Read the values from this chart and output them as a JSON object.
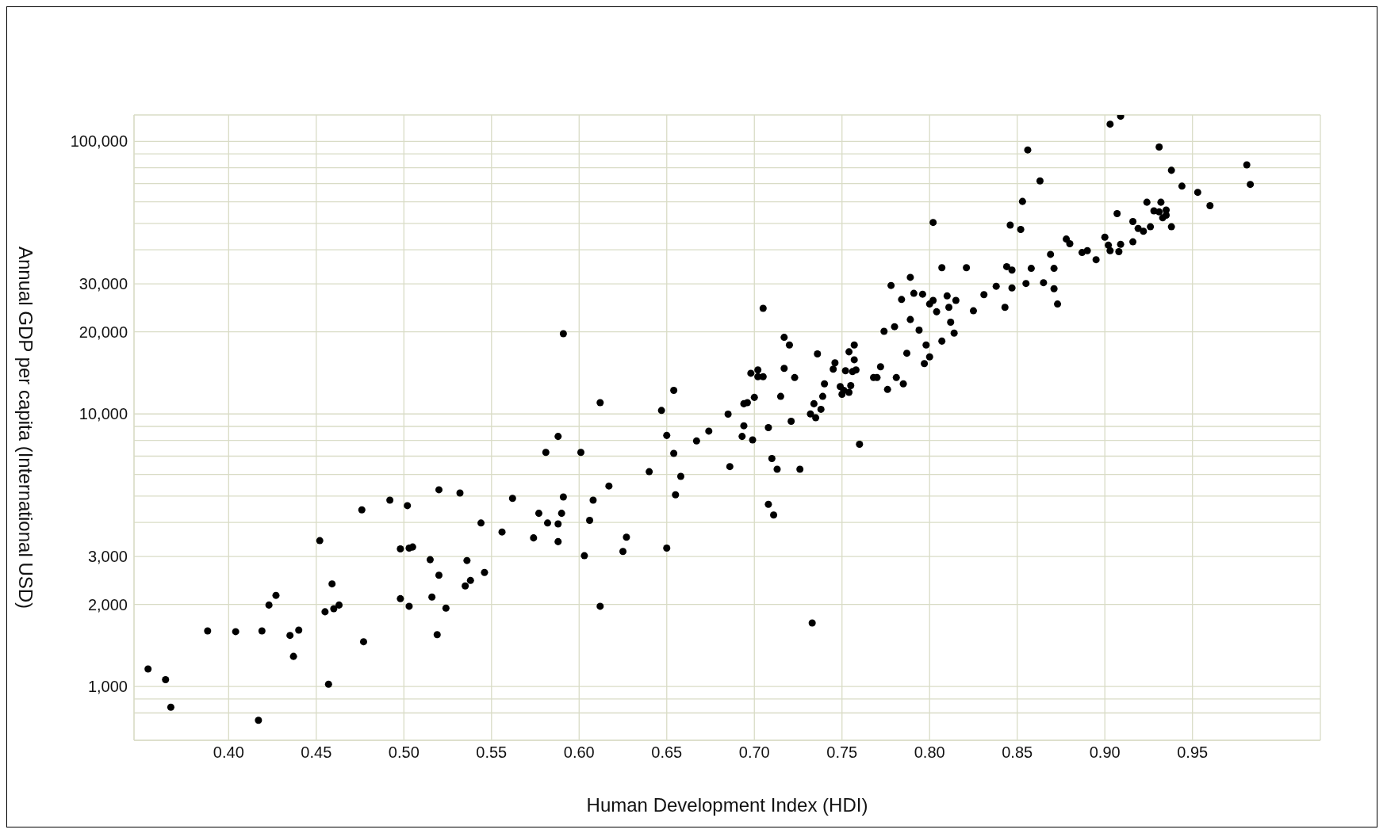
{
  "chart_data": {
    "type": "scatter",
    "xlabel": "Human Development Index (HDI)",
    "ylabel": "Annual GDP per capita (International USD)",
    "log": "y",
    "grid": true,
    "marker": "circle",
    "color": "#000000",
    "xlim": [
      0.346,
      1.023
    ],
    "ylim": [
      635,
      125000
    ],
    "xticks": [
      {
        "value": 0.4,
        "label": "0.40"
      },
      {
        "value": 0.45,
        "label": "0.45"
      },
      {
        "value": 0.5,
        "label": "0.50"
      },
      {
        "value": 0.55,
        "label": "0.55"
      },
      {
        "value": 0.6,
        "label": "0.60"
      },
      {
        "value": 0.65,
        "label": "0.65"
      },
      {
        "value": 0.7,
        "label": "0.70"
      },
      {
        "value": 0.75,
        "label": "0.75"
      },
      {
        "value": 0.8,
        "label": "0.80"
      },
      {
        "value": 0.85,
        "label": "0.85"
      },
      {
        "value": 0.9,
        "label": "0.90"
      },
      {
        "value": 0.95,
        "label": "0.95"
      }
    ],
    "yticks": [
      {
        "value": 800,
        "label": null
      },
      {
        "value": 900,
        "label": null
      },
      {
        "value": 1000,
        "label": "1,000"
      },
      {
        "value": 2000,
        "label": "2,000"
      },
      {
        "value": 3000,
        "label": "3,000"
      },
      {
        "value": 4000,
        "label": null
      },
      {
        "value": 5000,
        "label": null
      },
      {
        "value": 6000,
        "label": null
      },
      {
        "value": 7000,
        "label": null
      },
      {
        "value": 8000,
        "label": null
      },
      {
        "value": 9000,
        "label": null
      },
      {
        "value": 10000,
        "label": "10,000"
      },
      {
        "value": 20000,
        "label": "20,000"
      },
      {
        "value": 30000,
        "label": "30,000"
      },
      {
        "value": 40000,
        "label": null
      },
      {
        "value": 50000,
        "label": null
      },
      {
        "value": 60000,
        "label": null
      },
      {
        "value": 70000,
        "label": null
      },
      {
        "value": 80000,
        "label": null
      },
      {
        "value": 90000,
        "label": null
      },
      {
        "value": 100000,
        "label": "100,000"
      }
    ],
    "x": [
      0.354,
      0.364,
      0.367,
      0.388,
      0.404,
      0.419,
      0.417,
      0.423,
      0.427,
      0.435,
      0.437,
      0.44,
      0.452,
      0.455,
      0.457,
      0.459,
      0.46,
      0.463,
      0.476,
      0.477,
      0.492,
      0.498,
      0.498,
      0.502,
      0.503,
      0.503,
      0.505,
      0.515,
      0.516,
      0.519,
      0.52,
      0.52,
      0.524,
      0.532,
      0.535,
      0.536,
      0.538,
      0.544,
      0.546,
      0.556,
      0.562,
      0.574,
      0.577,
      0.581,
      0.582,
      0.588,
      0.588,
      0.588,
      0.59,
      0.591,
      0.591,
      0.601,
      0.603,
      0.606,
      0.608,
      0.612,
      0.612,
      0.617,
      0.625,
      0.627,
      0.64,
      0.647,
      0.65,
      0.65,
      0.654,
      0.654,
      0.655,
      0.658,
      0.667,
      0.674,
      0.685,
      0.686,
      0.693,
      0.694,
      0.694,
      0.696,
      0.699,
      0.698,
      0.7,
      0.702,
      0.702,
      0.705,
      0.705,
      0.708,
      0.708,
      0.71,
      0.711,
      0.713,
      0.715,
      0.717,
      0.717,
      0.72,
      0.721,
      0.723,
      0.726,
      0.732,
      0.733,
      0.734,
      0.735,
      0.736,
      0.738,
      0.739,
      0.74,
      0.745,
      0.746,
      0.749,
      0.75,
      0.751,
      0.752,
      0.754,
      0.754,
      0.755,
      0.756,
      0.757,
      0.757,
      0.758,
      0.76,
      0.768,
      0.77,
      0.772,
      0.774,
      0.776,
      0.778,
      0.78,
      0.781,
      0.784,
      0.785,
      0.787,
      0.789,
      0.789,
      0.791,
      0.794,
      0.796,
      0.797,
      0.798,
      0.8,
      0.8,
      0.802,
      0.802,
      0.804,
      0.807,
      0.807,
      0.81,
      0.811,
      0.812,
      0.814,
      0.815,
      0.821,
      0.825,
      0.831,
      0.838,
      0.843,
      0.844,
      0.846,
      0.847,
      0.847,
      0.852,
      0.853,
      0.855,
      0.856,
      0.858,
      0.863,
      0.865,
      0.869,
      0.871,
      0.871,
      0.873,
      0.878,
      0.88,
      0.887,
      0.89,
      0.895,
      0.9,
      0.902,
      0.903,
      0.903,
      0.907,
      0.908,
      0.909,
      0.909,
      0.916,
      0.916,
      0.919,
      0.922,
      0.924,
      0.926,
      0.928,
      0.931,
      0.931,
      0.932,
      0.933,
      0.935,
      0.935,
      0.938,
      0.938,
      0.944,
      0.953,
      0.96,
      0.981,
      0.983
    ],
    "values": [
      1160,
      1060,
      840,
      1600,
      1590,
      1600,
      752,
      1990,
      2160,
      1540,
      1290,
      1610,
      3430,
      1880,
      1020,
      2380,
      1930,
      1990,
      4450,
      1460,
      4830,
      3200,
      2100,
      4610,
      3220,
      1970,
      3250,
      2920,
      2130,
      1550,
      5270,
      2560,
      1940,
      5130,
      2340,
      2900,
      2450,
      3980,
      2620,
      3690,
      4900,
      3510,
      4320,
      7230,
      3980,
      8270,
      3400,
      3950,
      4320,
      4960,
      19700,
      7230,
      3020,
      4070,
      4830,
      11000,
      1970,
      5440,
      3130,
      3530,
      6140,
      10300,
      8340,
      3220,
      12200,
      7170,
      5050,
      5900,
      7960,
      8650,
      9980,
      6410,
      8270,
      9050,
      10900,
      11000,
      8030,
      14100,
      11500,
      14500,
      13700,
      24400,
      13700,
      8910,
      4660,
      6860,
      4260,
      6270,
      11600,
      19100,
      14700,
      17900,
      9400,
      13600,
      6270,
      10000,
      1710,
      10900,
      9680,
      16600,
      10400,
      11600,
      12900,
      14600,
      15400,
      12600,
      11800,
      12200,
      14400,
      12000,
      16900,
      12700,
      14300,
      17900,
      15800,
      14500,
      7740,
      13600,
      13600,
      14900,
      20100,
      12300,
      29600,
      20900,
      13600,
      26300,
      12900,
      16700,
      31700,
      22200,
      27700,
      20300,
      27500,
      15300,
      17900,
      16200,
      25300,
      26100,
      50400,
      23700,
      34400,
      18500,
      27100,
      24600,
      21700,
      19800,
      26100,
      34400,
      23900,
      27400,
      29400,
      24600,
      34700,
      49300,
      33700,
      29000,
      47500,
      60200,
      30100,
      93000,
      34200,
      71600,
      30300,
      38500,
      28800,
      34200,
      25300,
      43800,
      42100,
      39100,
      39700,
      36800,
      44500,
      41600,
      39700,
      115600,
      54300,
      39400,
      41900,
      123600,
      42800,
      50800,
      47900,
      46800,
      59800,
      48600,
      55600,
      55100,
      95300,
      59800,
      52400,
      56000,
      53600,
      78300,
      48600,
      68500,
      65000,
      58100,
      82000,
      69500
    ]
  }
}
